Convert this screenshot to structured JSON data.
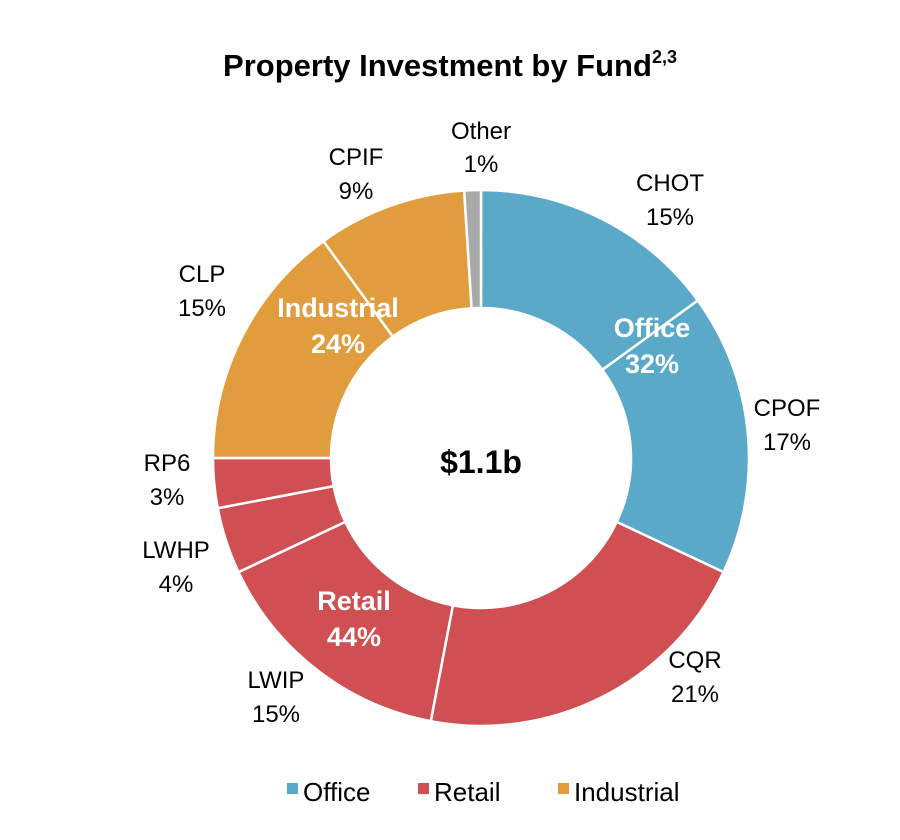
{
  "chart_data": {
    "type": "pie",
    "title": "Property Investment by Fund",
    "title_superscript": "2,3",
    "center_label": "$1.1b",
    "slices": [
      {
        "label": "CHOT",
        "percent_label": "15%",
        "value": 15,
        "group": "Office"
      },
      {
        "label": "CPOF",
        "percent_label": "17%",
        "value": 17,
        "group": "Office"
      },
      {
        "label": "CQR",
        "percent_label": "21%",
        "value": 21,
        "group": "Retail"
      },
      {
        "label": "LWIP",
        "percent_label": "15%",
        "value": 15,
        "group": "Retail"
      },
      {
        "label": "LWHP",
        "percent_label": "4%",
        "value": 4,
        "group": "Retail"
      },
      {
        "label": "RP6",
        "percent_label": "3%",
        "value": 3,
        "group": "Retail"
      },
      {
        "label": "CLP",
        "percent_label": "15%",
        "value": 15,
        "group": "Industrial"
      },
      {
        "label": "CPIF",
        "percent_label": "9%",
        "value": 9,
        "group": "Industrial"
      },
      {
        "label": "Other",
        "percent_label": "1%",
        "value": 1,
        "group": "Other"
      }
    ],
    "groups": [
      {
        "name": "Office",
        "percent_label": "32%",
        "color": "#5aa9c9"
      },
      {
        "name": "Retail",
        "percent_label": "44%",
        "color": "#cf4f52"
      },
      {
        "name": "Industrial",
        "percent_label": "24%",
        "color": "#e19d3d"
      },
      {
        "name": "Other",
        "percent_label": "",
        "color": "#a9a9a9"
      }
    ],
    "legend": [
      {
        "name": "Office",
        "color": "#5aa9c9"
      },
      {
        "name": "Retail",
        "color": "#cf4f52"
      },
      {
        "name": "Industrial",
        "color": "#e19d3d"
      }
    ],
    "legend_position": "bottom"
  }
}
